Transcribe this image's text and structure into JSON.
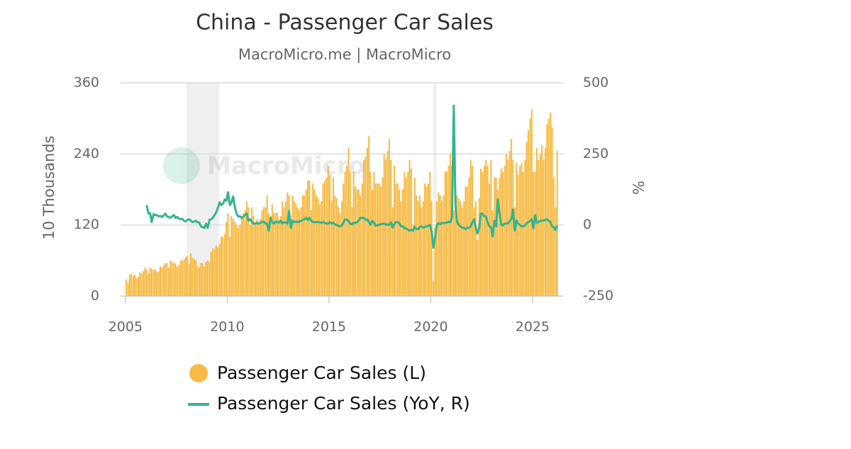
{
  "chart_data": {
    "type": "combo",
    "title": "China - Passenger Car Sales",
    "subtitle": "MacroMicro.me | MacroMicro",
    "watermark": "MacroMicro",
    "y_label": "10 Thousands",
    "y2_label": "%",
    "xlim": [
      2004.76,
      2026.43
    ],
    "xticks": [
      2005,
      2010,
      2015,
      2020,
      2025
    ],
    "ylim": [
      0,
      360
    ],
    "yticks": [
      0,
      120,
      240,
      360
    ],
    "y2lim": [
      -250,
      500
    ],
    "y2ticks": [
      -250,
      0,
      250,
      500
    ],
    "grid": true,
    "shaded_ranges": [
      [
        2008.0,
        2009.6
      ],
      [
        2020.12,
        2020.29
      ]
    ],
    "x": [
      2005.04,
      2005.13,
      2005.21,
      2005.29,
      2005.38,
      2005.46,
      2005.54,
      2005.63,
      2005.71,
      2005.79,
      2005.88,
      2005.96,
      2006.04,
      2006.13,
      2006.21,
      2006.29,
      2006.38,
      2006.46,
      2006.54,
      2006.63,
      2006.71,
      2006.79,
      2006.88,
      2006.96,
      2007.04,
      2007.13,
      2007.21,
      2007.29,
      2007.38,
      2007.46,
      2007.54,
      2007.63,
      2007.71,
      2007.79,
      2007.88,
      2007.96,
      2008.04,
      2008.13,
      2008.21,
      2008.29,
      2008.38,
      2008.46,
      2008.54,
      2008.63,
      2008.71,
      2008.79,
      2008.88,
      2008.96,
      2009.04,
      2009.13,
      2009.21,
      2009.29,
      2009.38,
      2009.46,
      2009.54,
      2009.63,
      2009.71,
      2009.79,
      2009.88,
      2009.96,
      2010.04,
      2010.13,
      2010.21,
      2010.29,
      2010.38,
      2010.46,
      2010.54,
      2010.63,
      2010.71,
      2010.79,
      2010.88,
      2010.96,
      2011.04,
      2011.13,
      2011.21,
      2011.29,
      2011.38,
      2011.46,
      2011.54,
      2011.63,
      2011.71,
      2011.79,
      2011.88,
      2011.96,
      2012.04,
      2012.13,
      2012.21,
      2012.29,
      2012.38,
      2012.46,
      2012.54,
      2012.63,
      2012.71,
      2012.79,
      2012.88,
      2012.96,
      2013.04,
      2013.13,
      2013.21,
      2013.29,
      2013.38,
      2013.46,
      2013.54,
      2013.63,
      2013.71,
      2013.79,
      2013.88,
      2013.96,
      2014.04,
      2014.13,
      2014.21,
      2014.29,
      2014.38,
      2014.46,
      2014.54,
      2014.63,
      2014.71,
      2014.79,
      2014.88,
      2014.96,
      2015.04,
      2015.13,
      2015.21,
      2015.29,
      2015.38,
      2015.46,
      2015.54,
      2015.63,
      2015.71,
      2015.79,
      2015.88,
      2015.96,
      2016.04,
      2016.13,
      2016.21,
      2016.29,
      2016.38,
      2016.46,
      2016.54,
      2016.63,
      2016.71,
      2016.79,
      2016.88,
      2016.96,
      2017.04,
      2017.13,
      2017.21,
      2017.29,
      2017.38,
      2017.46,
      2017.54,
      2017.63,
      2017.71,
      2017.79,
      2017.88,
      2017.96,
      2018.04,
      2018.13,
      2018.21,
      2018.29,
      2018.38,
      2018.46,
      2018.54,
      2018.63,
      2018.71,
      2018.79,
      2018.88,
      2018.96,
      2019.04,
      2019.13,
      2019.21,
      2019.29,
      2019.38,
      2019.46,
      2019.54,
      2019.63,
      2019.71,
      2019.79,
      2019.88,
      2019.96,
      2020.04,
      2020.13,
      2020.21,
      2020.29,
      2020.38,
      2020.46,
      2020.54,
      2020.63,
      2020.71,
      2020.79,
      2020.88,
      2020.96,
      2021.04,
      2021.13,
      2021.21,
      2021.29,
      2021.38,
      2021.46,
      2021.54,
      2021.63,
      2021.71,
      2021.79,
      2021.88,
      2021.96,
      2022.04,
      2022.13,
      2022.21,
      2022.29,
      2022.38,
      2022.46,
      2022.54,
      2022.63,
      2022.71,
      2022.79,
      2022.88,
      2022.96,
      2023.04,
      2023.13,
      2023.21,
      2023.29,
      2023.38,
      2023.46,
      2023.54,
      2023.63,
      2023.71,
      2023.79,
      2023.88,
      2023.96,
      2024.04,
      2024.13,
      2024.21,
      2024.29,
      2024.38,
      2024.46,
      2024.54,
      2024.63,
      2024.71,
      2024.79,
      2024.88,
      2024.96,
      2025.04,
      2025.13,
      2025.21,
      2025.29,
      2025.38,
      2025.46,
      2025.54,
      2025.63,
      2025.71,
      2025.79,
      2025.88,
      2025.96,
      2026.04,
      2026.13,
      2026.21
    ],
    "series": [
      {
        "name": "Passenger Car Sales (L)",
        "type": "bar",
        "color": "#f6bb45",
        "values": [
          28,
          22,
          36,
          38,
          34,
          36,
          30,
          32,
          40,
          38,
          42,
          48,
          45,
          38,
          48,
          46,
          44,
          45,
          40,
          42,
          50,
          48,
          52,
          56,
          55,
          48,
          60,
          58,
          56,
          55,
          50,
          52,
          60,
          60,
          62,
          66,
          68,
          55,
          72,
          65,
          62,
          60,
          50,
          48,
          56,
          55,
          50,
          58,
          60,
          58,
          75,
          80,
          80,
          85,
          82,
          88,
          100,
          100,
          105,
          125,
          140,
          100,
          135,
          130,
          125,
          120,
          115,
          120,
          135,
          140,
          145,
          160,
          150,
          120,
          150,
          135,
          125,
          130,
          125,
          130,
          145,
          150,
          150,
          170,
          140,
          135,
          155,
          140,
          140,
          140,
          130,
          135,
          160,
          150,
          160,
          175,
          170,
          130,
          170,
          160,
          155,
          150,
          145,
          150,
          170,
          170,
          180,
          195,
          195,
          145,
          190,
          180,
          170,
          165,
          155,
          160,
          190,
          195,
          200,
          220,
          205,
          160,
          200,
          170,
          165,
          150,
          140,
          160,
          190,
          210,
          220,
          250,
          210,
          150,
          210,
          185,
          180,
          180,
          170,
          190,
          230,
          235,
          250,
          270,
          210,
          180,
          210,
          190,
          190,
          190,
          185,
          200,
          240,
          230,
          245,
          265,
          230,
          150,
          220,
          190,
          190,
          180,
          160,
          180,
          210,
          200,
          210,
          230,
          215,
          120,
          200,
          170,
          160,
          170,
          150,
          160,
          190,
          185,
          190,
          210,
          160,
          25,
          115,
          160,
          175,
          170,
          160,
          170,
          210,
          210,
          220,
          240,
          220,
          145,
          180,
          170,
          165,
          160,
          150,
          160,
          185,
          185,
          200,
          230,
          220,
          150,
          160,
          95,
          165,
          215,
          210,
          220,
          230,
          220,
          190,
          230,
          145,
          200,
          200,
          180,
          200,
          215,
          210,
          220,
          240,
          230,
          245,
          265,
          230,
          150,
          225,
          205,
          220,
          225,
          210,
          230,
          260,
          280,
          300,
          315,
          210,
          210,
          250,
          230,
          240,
          255,
          230,
          250,
          290,
          300,
          310,
          285,
          200,
          150,
          245
        ]
      },
      {
        "name": "Passenger Car Sales (YoY, R)",
        "type": "line",
        "axis": "y2",
        "color": "#35b48f",
        "values": [
          null,
          null,
          null,
          null,
          null,
          null,
          null,
          null,
          null,
          null,
          null,
          null,
          70,
          40,
          42,
          10,
          38,
          35,
          35,
          30,
          32,
          28,
          34,
          40,
          30,
          28,
          25,
          30,
          35,
          25,
          28,
          22,
          20,
          22,
          15,
          12,
          18,
          20,
          15,
          10,
          12,
          15,
          10,
          8,
          -5,
          -8,
          -10,
          5,
          -10,
          18,
          20,
          25,
          35,
          45,
          60,
          80,
          70,
          75,
          90,
          85,
          115,
          70,
          80,
          100,
          60,
          40,
          30,
          30,
          25,
          30,
          35,
          40,
          15,
          20,
          10,
          5,
          5,
          8,
          5,
          8,
          10,
          12,
          5,
          5,
          -20,
          25,
          10,
          5,
          12,
          10,
          8,
          15,
          5,
          10,
          8,
          5,
          50,
          -10,
          15,
          10,
          12,
          10,
          12,
          15,
          18,
          20,
          25,
          18,
          25,
          15,
          10,
          10,
          10,
          10,
          10,
          8,
          10,
          8,
          5,
          5,
          10,
          5,
          8,
          2,
          0,
          -3,
          -5,
          -2,
          8,
          20,
          18,
          15,
          5,
          2,
          8,
          7,
          10,
          15,
          25,
          25,
          25,
          18,
          20,
          10,
          0,
          15,
          8,
          -2,
          -1,
          1,
          2,
          4,
          5,
          2,
          1,
          0,
          10,
          -10,
          4,
          10,
          10,
          5,
          -5,
          -5,
          -12,
          -12,
          -17,
          -20,
          -17,
          -20,
          -7,
          -14,
          -15,
          -7,
          -5,
          -9,
          -7,
          -5,
          -3,
          0,
          -20,
          -80,
          -45,
          -2,
          7,
          2,
          8,
          6,
          8,
          8,
          12,
          10,
          25,
          420,
          75,
          10,
          0,
          -5,
          -10,
          -10,
          -15,
          -10,
          -10,
          -5,
          8,
          20,
          -10,
          -30,
          -10,
          40,
          40,
          30,
          30,
          10,
          -5,
          -8,
          -40,
          15,
          -5,
          90,
          40,
          2,
          -2,
          5,
          5,
          5,
          15,
          20,
          55,
          -20,
          15,
          5,
          0,
          -5,
          -5,
          -2,
          6,
          10,
          15,
          20,
          -12,
          35,
          8,
          10,
          15,
          15,
          15,
          18,
          20,
          15,
          10,
          -5,
          -8,
          -18,
          -2
        ]
      }
    ]
  }
}
